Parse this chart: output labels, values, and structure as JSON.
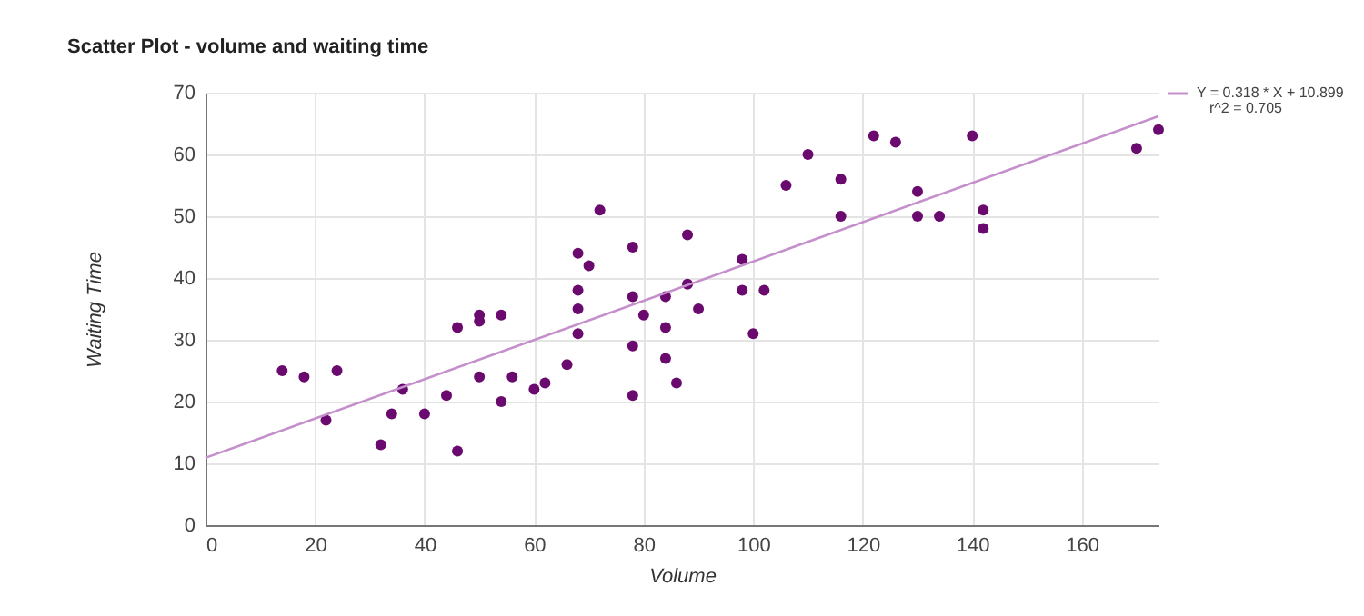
{
  "chart_data": {
    "type": "scatter",
    "title": "Scatter Plot - volume and waiting time",
    "xlabel": "Volume",
    "ylabel": "Waiting Time",
    "xlim": [
      0,
      174
    ],
    "xticks": [
      0,
      20,
      40,
      60,
      80,
      100,
      120,
      140,
      160
    ],
    "ylim": [
      0,
      70
    ],
    "yticks": [
      0,
      10,
      20,
      30,
      40,
      50,
      60,
      70
    ],
    "grid": true,
    "legend": "top right",
    "annotations": [
      "r^2 = 0.705"
    ],
    "series": [
      {
        "marker": "circle",
        "color": "#6a0a6e",
        "x": [
          14,
          18,
          22,
          24,
          32,
          34,
          36,
          40,
          44,
          46,
          46,
          50,
          50,
          50,
          54,
          54,
          56,
          60,
          62,
          66,
          68,
          68,
          68,
          68,
          70,
          72,
          78,
          78,
          78,
          78,
          80,
          84,
          84,
          84,
          86,
          88,
          88,
          90,
          98,
          98,
          100,
          102,
          106,
          110,
          116,
          116,
          122,
          126,
          130,
          130,
          134,
          140,
          142,
          142,
          170,
          174
        ],
        "values": [
          25,
          24,
          17,
          25,
          13,
          18,
          22,
          18,
          21,
          12,
          32,
          34,
          33,
          24,
          34,
          20,
          24,
          22,
          23,
          26,
          44,
          38,
          35,
          31,
          42,
          51,
          45,
          37,
          29,
          21,
          34,
          37,
          32,
          27,
          23,
          47,
          39,
          35,
          43,
          38,
          31,
          38,
          55,
          60,
          56,
          50,
          63,
          62,
          54,
          50,
          50,
          63,
          51,
          48,
          61,
          64
        ]
      },
      {
        "type": "line",
        "name": "Y = 0.318 * X + 10.899",
        "color": "#c58fcc",
        "x": [
          0,
          174
        ],
        "values": [
          10.9,
          66.2
        ]
      }
    ]
  }
}
